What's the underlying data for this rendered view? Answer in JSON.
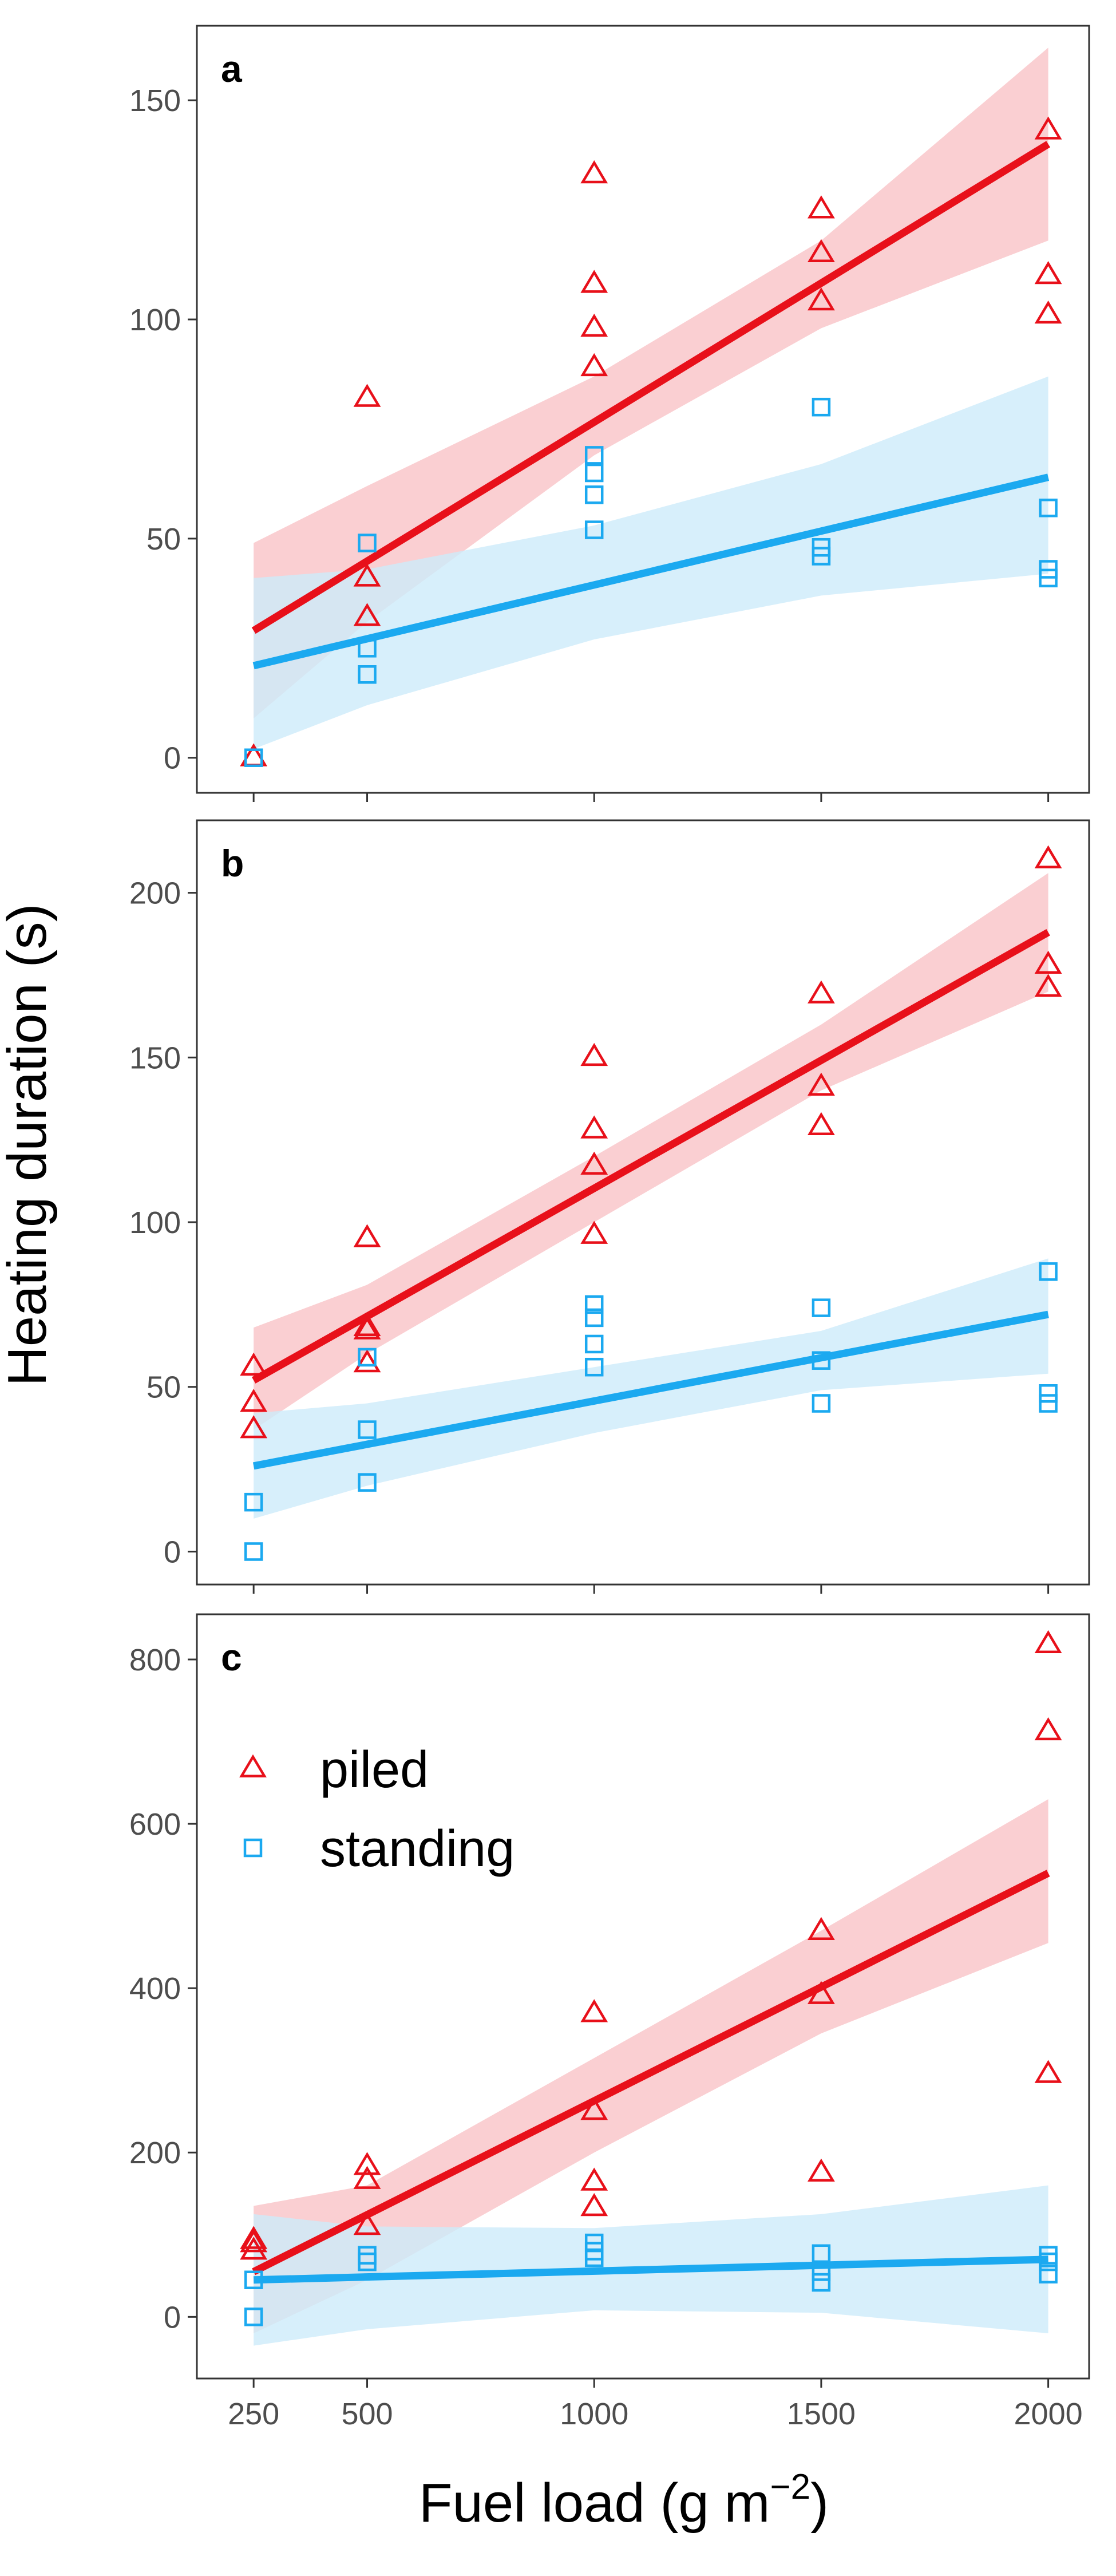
{
  "chart_data": {
    "type": "scatter",
    "ylabel": "Heating duration (s)",
    "xlabel_main": "Fuel load (g m",
    "xlabel_sup": "−2",
    "xlabel_close": ")",
    "x_ticks": [
      250,
      500,
      1000,
      1500,
      2000
    ],
    "xlim": [
      125,
      2090
    ],
    "colors": {
      "piled": "#E8101A",
      "standing": "#1BA9F0",
      "piled_band": "#F9C7CA",
      "standing_band": "#CDEBFA"
    },
    "legend": {
      "panel": "c",
      "placement": "top-left",
      "entries": [
        {
          "label": "piled",
          "marker": "triangle"
        },
        {
          "label": "standing",
          "marker": "square"
        }
      ]
    },
    "panels": [
      {
        "tag": "a",
        "ylim": [
          -8,
          167
        ],
        "y_ticks": [
          0,
          50,
          100,
          150
        ],
        "series": [
          {
            "name": "piled",
            "marker": "triangle",
            "points": [
              [
                250,
                0
              ],
              [
                500,
                82
              ],
              [
                500,
                41
              ],
              [
                500,
                32
              ],
              [
                1000,
                133
              ],
              [
                1000,
                108
              ],
              [
                1000,
                98
              ],
              [
                1000,
                89
              ],
              [
                1500,
                125
              ],
              [
                1500,
                115
              ],
              [
                1500,
                104
              ],
              [
                2000,
                143
              ],
              [
                2000,
                110
              ],
              [
                2000,
                101
              ]
            ],
            "fit": [
              [
                250,
                29
              ],
              [
                2000,
                140
              ]
            ],
            "band_low": [
              [
                250,
                9
              ],
              [
                500,
                31
              ],
              [
                1000,
                69
              ],
              [
                1500,
                98
              ],
              [
                2000,
                118
              ]
            ],
            "band_high": [
              [
                250,
                49
              ],
              [
                500,
                62
              ],
              [
                1000,
                87
              ],
              [
                1500,
                118
              ],
              [
                2000,
                162
              ]
            ]
          },
          {
            "name": "standing",
            "marker": "square",
            "points": [
              [
                250,
                0
              ],
              [
                500,
                49
              ],
              [
                500,
                25
              ],
              [
                500,
                19
              ],
              [
                1000,
                69
              ],
              [
                1000,
                65
              ],
              [
                1000,
                60
              ],
              [
                1000,
                52
              ],
              [
                1500,
                80
              ],
              [
                1500,
                48
              ],
              [
                1500,
                46
              ],
              [
                2000,
                57
              ],
              [
                2000,
                43
              ],
              [
                2000,
                41
              ]
            ],
            "fit": [
              [
                250,
                21
              ],
              [
                2000,
                64
              ]
            ],
            "band_low": [
              [
                250,
                2
              ],
              [
                500,
                12
              ],
              [
                1000,
                27
              ],
              [
                1500,
                37
              ],
              [
                2000,
                42
              ]
            ],
            "band_high": [
              [
                250,
                41
              ],
              [
                500,
                43
              ],
              [
                1000,
                53
              ],
              [
                1500,
                67
              ],
              [
                2000,
                87
              ]
            ]
          }
        ]
      },
      {
        "tag": "b",
        "ylim": [
          -10,
          222
        ],
        "y_ticks": [
          0,
          50,
          100,
          150,
          200
        ],
        "series": [
          {
            "name": "piled",
            "marker": "triangle",
            "points": [
              [
                250,
                56
              ],
              [
                250,
                45
              ],
              [
                250,
                37
              ],
              [
                500,
                95
              ],
              [
                500,
                68
              ],
              [
                500,
                67
              ],
              [
                500,
                57
              ],
              [
                1000,
                150
              ],
              [
                1000,
                128
              ],
              [
                1000,
                117
              ],
              [
                1000,
                96
              ],
              [
                1500,
                169
              ],
              [
                1500,
                141
              ],
              [
                1500,
                129
              ],
              [
                2000,
                210
              ],
              [
                2000,
                178
              ],
              [
                2000,
                171
              ]
            ],
            "fit": [
              [
                250,
                52
              ],
              [
                2000,
                188
              ]
            ],
            "band_low": [
              [
                250,
                37
              ],
              [
                500,
                60
              ],
              [
                1000,
                100
              ],
              [
                1500,
                140
              ],
              [
                2000,
                170
              ]
            ],
            "band_high": [
              [
                250,
                68
              ],
              [
                500,
                81
              ],
              [
                1000,
                120
              ],
              [
                1500,
                160
              ],
              [
                2000,
                206
              ]
            ]
          },
          {
            "name": "standing",
            "marker": "square",
            "points": [
              [
                250,
                15
              ],
              [
                250,
                0
              ],
              [
                500,
                59
              ],
              [
                500,
                37
              ],
              [
                500,
                21
              ],
              [
                1000,
                75
              ],
              [
                1000,
                71
              ],
              [
                1000,
                63
              ],
              [
                1000,
                56
              ],
              [
                1500,
                74
              ],
              [
                1500,
                58
              ],
              [
                1500,
                45
              ],
              [
                2000,
                85
              ],
              [
                2000,
                48
              ],
              [
                2000,
                45
              ]
            ],
            "fit": [
              [
                250,
                26
              ],
              [
                2000,
                72
              ]
            ],
            "band_low": [
              [
                250,
                10
              ],
              [
                500,
                20
              ],
              [
                1000,
                36
              ],
              [
                1500,
                49
              ],
              [
                2000,
                54
              ]
            ],
            "band_high": [
              [
                250,
                42
              ],
              [
                500,
                45
              ],
              [
                1000,
                56
              ],
              [
                1500,
                67
              ],
              [
                2000,
                89
              ]
            ]
          }
        ]
      },
      {
        "tag": "c",
        "ylim": [
          -75,
          855
        ],
        "y_ticks": [
          0,
          200,
          400,
          600,
          800
        ],
        "series": [
          {
            "name": "piled",
            "marker": "triangle",
            "points": [
              [
                250,
                93
              ],
              [
                250,
                89
              ],
              [
                250,
                80
              ],
              [
                500,
                183
              ],
              [
                500,
                166
              ],
              [
                500,
                110
              ],
              [
                1000,
                369
              ],
              [
                1000,
                250
              ],
              [
                1000,
                164
              ],
              [
                1000,
                133
              ],
              [
                1500,
                469
              ],
              [
                1500,
                391
              ],
              [
                1500,
                175
              ],
              [
                2000,
                818
              ],
              [
                2000,
                712
              ],
              [
                2000,
                295
              ]
            ],
            "fit": [
              [
                250,
                55
              ],
              [
                2000,
                540
              ]
            ],
            "band_low": [
              [
                250,
                -20
              ],
              [
                500,
                45
              ],
              [
                1000,
                200
              ],
              [
                1500,
                345
              ],
              [
                2000,
                455
              ]
            ],
            "band_high": [
              [
                250,
                135
              ],
              [
                500,
                160
              ],
              [
                1000,
                315
              ],
              [
                1500,
                470
              ],
              [
                2000,
                630
              ]
            ]
          },
          {
            "name": "standing",
            "marker": "square",
            "points": [
              [
                250,
                45
              ],
              [
                250,
                0
              ],
              [
                500,
                75
              ],
              [
                500,
                67
              ],
              [
                1000,
                90
              ],
              [
                1000,
                80
              ],
              [
                1000,
                72
              ],
              [
                1500,
                77
              ],
              [
                1500,
                55
              ],
              [
                1500,
                42
              ],
              [
                2000,
                75
              ],
              [
                2000,
                67
              ],
              [
                2000,
                52
              ]
            ],
            "fit": [
              [
                250,
                45
              ],
              [
                2000,
                70
              ]
            ],
            "band_low": [
              [
                250,
                -35
              ],
              [
                500,
                -15
              ],
              [
                1000,
                8
              ],
              [
                1500,
                5
              ],
              [
                2000,
                -20
              ]
            ],
            "band_high": [
              [
                250,
                125
              ],
              [
                500,
                110
              ],
              [
                1000,
                108
              ],
              [
                1500,
                125
              ],
              [
                2000,
                160
              ]
            ]
          }
        ]
      }
    ]
  }
}
